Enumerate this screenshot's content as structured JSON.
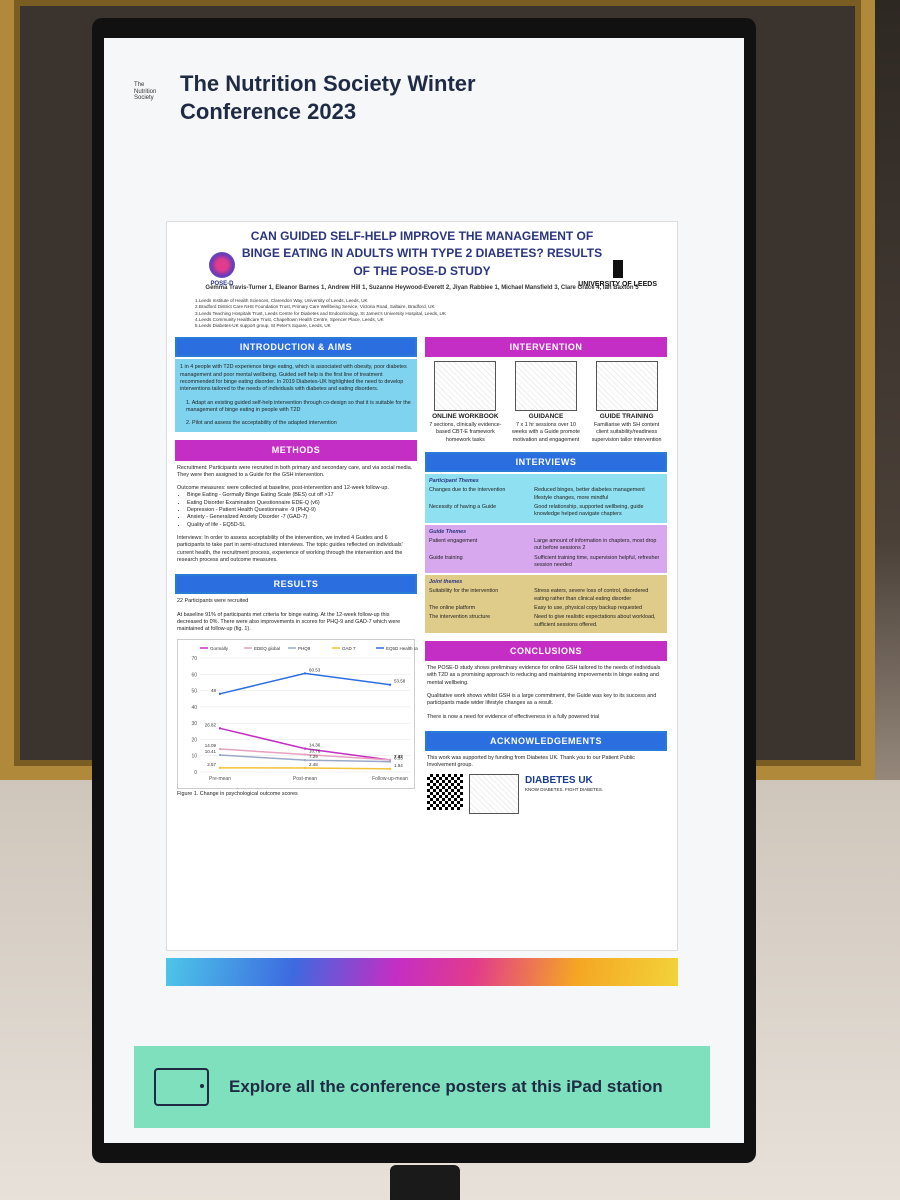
{
  "screen": {
    "title": "The Nutrition Society Winter Conference 2023",
    "logo_text": "The Nutrition Society",
    "cta": "Explore all the conference posters at this iPad station"
  },
  "poster": {
    "title": "CAN GUIDED SELF-HELP IMPROVE THE MANAGEMENT OF BINGE EATING IN ADULTS WITH TYPE 2 DIABETES? RESULTS OF THE POSE-D STUDY",
    "logo_left": "POSE-D",
    "logo_right": "UNIVERSITY OF LEEDS",
    "authors": "Gemma Travis-Turner 1, Eleanor Barnes 1, Andrew Hill 1, Suzanne Heywood-Everett 2, Jiyan Rabbiee 1, Michael Mansfield 3, Clare Grace 4, Ian Baxton 5",
    "affiliations": [
      "1.Leeds Institute of Health Sciences, Clarendon Way, University of Leeds, Leeds, UK",
      "2.Bradford District Care NHS Foundation Trust, Primary Care Wellbeing Service, Victoria Road, Saltaire, Bradford, UK",
      "3.Leeds Teaching Hospitals Trust, Leeds Centre for Diabetes and Endocrinology, St James's University Hospital, Leeds, UK",
      "4.Leeds Community Healthcare Trust, Chapeltown Health Centre, Spencer Place, Leeds, UK",
      "5.Leeds Diabetes-UK support group, St Peter's Square, Leeds, UK"
    ],
    "intro": {
      "heading": "INTRODUCTION & AIMS",
      "body": "1 in 4 people with T2D experience binge eating, which is associated with obesity, poor diabetes management and poor mental wellbeing. Guided self help is the first line of treatment recommended for binge eating disorder. In 2019 Diabetes-UK highlighted the need to develop interventions tailored to the needs of individuals with diabetes and eating disorders.",
      "aim1": "1. Adapt an existing guided self-help intervention through co-design so that it is suitable for the management of binge eating in people with T2D",
      "aim2": "2. Pilot and assess the acceptability of the adapted intervention"
    },
    "intervention": {
      "heading": "INTERVENTION",
      "items": [
        {
          "label": "ONLINE WORKBOOK",
          "desc": "7 sections, clinically evidence-based CBT-E framework homework tasks"
        },
        {
          "label": "GUIDANCE",
          "desc": "7 x 1 hr sessions over 10 weeks with a Guide promote motivation and engagement"
        },
        {
          "label": "GUIDE TRAINING",
          "desc": "Familiarise with SH content client suitability/readiness supervision tailor intervention"
        }
      ]
    },
    "methods": {
      "heading": "METHODS",
      "recruitment": "Recruitment: Participants were recruited in both primary and secondary care, and via social media. They were then assigned to a Guide for the GSH intervention.",
      "outcomes_intro": "Outcome measures: were collected at baseline, post-intervention and 12-week follow-up.",
      "outcomes": [
        "Binge Eating - Gormally Binge Eating Scale (BES) cut off >17",
        "Eating Disorder Examination Questionnaire EDE-Q (v6)",
        "Depression - Patient Health Questionnaire -9 (PHQ-9)",
        "Anxiety - Generalized Anxiety Disorder -7 (GAD-7)",
        "Quality of life - EQ5D-5L"
      ],
      "interviews": "Interviews: In order to assess acceptability of the intervention, we invited 4 Guides and 6 participants to take part in semi-structured interviews. The topic guides reflected on individuals' current health, the recruitment process, experience of working through the intervention and the research process and outcome measures."
    },
    "interviews": {
      "heading": "INTERVIEWS",
      "groups": [
        {
          "title": "Participant Themes",
          "rows": [
            [
              "Changes due to the intervention",
              "Reduced binges, better diabetes management lifestyle changes, more mindful"
            ],
            [
              "Necessity of having a Guide",
              "Good relationship, supported wellbeing, guide knowledge helped navigate chapters"
            ]
          ]
        },
        {
          "title": "Guide Themes",
          "rows": [
            [
              "Patient engagement",
              "Large amount of information in chapters, most drop out before sessions 2"
            ],
            [
              "Guide training",
              "Sufficient training time, supervision helpful, refresher session needed"
            ]
          ]
        },
        {
          "title": "Joint themes",
          "rows": [
            [
              "Suitability for the intervention",
              "Stress eaters, severe loss of control, disordered eating rather than clinical eating disorder"
            ],
            [
              "The online platform",
              "Easy to use, physical copy backup requested"
            ],
            [
              "The intervention structure",
              "Need to give realistic expectations about workload, sufficient sessions offered."
            ]
          ]
        }
      ]
    },
    "results": {
      "heading": "RESULTS",
      "p1": "22 Participants were recruited",
      "p2": "At baseline 91% of participants met criteria for binge eating. At the 12-week follow-up this decreased to 0%. There were also improvements in scores for PHQ-9 and GAD-7 which were maintained at follow-up (fig. 1).",
      "caption": "Figure 1. Change in psychological outcome scores"
    },
    "conclusions": {
      "heading": "CONCLUSIONS",
      "p1": "The POSE-D study shows preliminary evidence for online GSH tailored to the needs of individuals with T2D as a promising approach to reducing and maintaining improvements in binge eating and mental wellbeing.",
      "p2": "Qualitative work shows whilst GSH is a large commitment, the Guide was key to its success and participants made wider lifestyle changes as a result.",
      "p3": "There is now a need for evidence of effectiveness in a fully powered trial"
    },
    "acknowledgements": {
      "heading": "ACKNOWLEDGEMENTS",
      "body": "This work was supported by funding from Diabetes UK. Thank you to our Patient Public Involvement group.",
      "funder": "DIABETES UK",
      "funder_tag": "KNOW DIABETES. FIGHT DIABETES."
    }
  },
  "chart_data": {
    "type": "line",
    "categories": [
      "Pre-mean",
      "Post-mean",
      "Follow-up-mean"
    ],
    "ylim": [
      0,
      70
    ],
    "yticks": [
      0,
      10,
      20,
      30,
      40,
      50,
      60,
      70
    ],
    "series": [
      {
        "name": "Gormally",
        "color": "#c42ec4",
        "values": [
          26.82,
          14.36,
          7.37
        ]
      },
      {
        "name": "EDEQ global",
        "color": "#e8a0c0",
        "values": [
          14.09,
          10.76,
          7.42
        ]
      },
      {
        "name": "PHQ9",
        "color": "#9aa8c8",
        "values": [
          10.41,
          7.29,
          6.33
        ]
      },
      {
        "name": "GAD 7",
        "color": "#f2c23a",
        "values": [
          2.57,
          2.48,
          1.94
        ]
      },
      {
        "name": "EQ5D Health rating",
        "color": "#2a6ee0",
        "values": [
          48,
          60.53,
          53.58
        ]
      }
    ]
  }
}
